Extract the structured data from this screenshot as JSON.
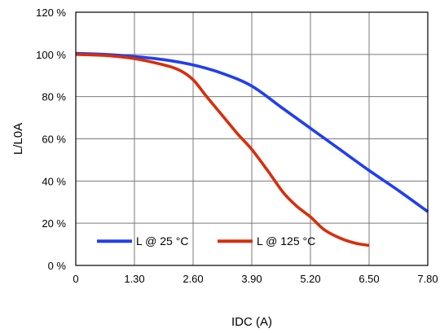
{
  "chart_data": {
    "type": "line",
    "title": "",
    "xlabel": "IDC (A)",
    "ylabel": "L/L0A",
    "xlim": [
      0,
      7.8
    ],
    "ylim": [
      0,
      120
    ],
    "grid": true,
    "legend_position": "bottom-left",
    "x_ticks": [
      0,
      1.3,
      2.6,
      3.9,
      5.2,
      6.5,
      7.8
    ],
    "x_tick_labels": [
      "0",
      "1.30",
      "2.60",
      "3.90",
      "5.20",
      "6.50",
      "7.80"
    ],
    "y_ticks": [
      0,
      20,
      40,
      60,
      80,
      100,
      120
    ],
    "y_tick_labels": [
      "0 %",
      "20 %",
      "40 %",
      "60 %",
      "80 %",
      "100 %",
      "120 %"
    ],
    "series": [
      {
        "name": "L @ 25 °C",
        "color": "#1f3ff0",
        "x": [
          0,
          0.65,
          1.3,
          1.95,
          2.6,
          3.25,
          3.9,
          4.55,
          5.2,
          5.85,
          6.5,
          7.15,
          7.8
        ],
        "y": [
          100.5,
          100,
          99,
          97.5,
          95,
          91,
          85,
          75,
          65,
          55,
          45,
          35.5,
          25.5
        ]
      },
      {
        "name": "L @ 125 °C",
        "color": "#d82e0a",
        "x": [
          0,
          0.65,
          1.3,
          1.95,
          2.3,
          2.6,
          2.9,
          3.25,
          3.6,
          3.9,
          4.25,
          4.6,
          4.9,
          5.2,
          5.5,
          5.85,
          6.2,
          6.5
        ],
        "y": [
          100,
          99.5,
          98,
          95,
          92.5,
          88,
          80,
          71,
          62,
          55,
          45,
          34.5,
          28,
          23,
          17,
          13,
          10.5,
          9.5
        ]
      }
    ]
  }
}
